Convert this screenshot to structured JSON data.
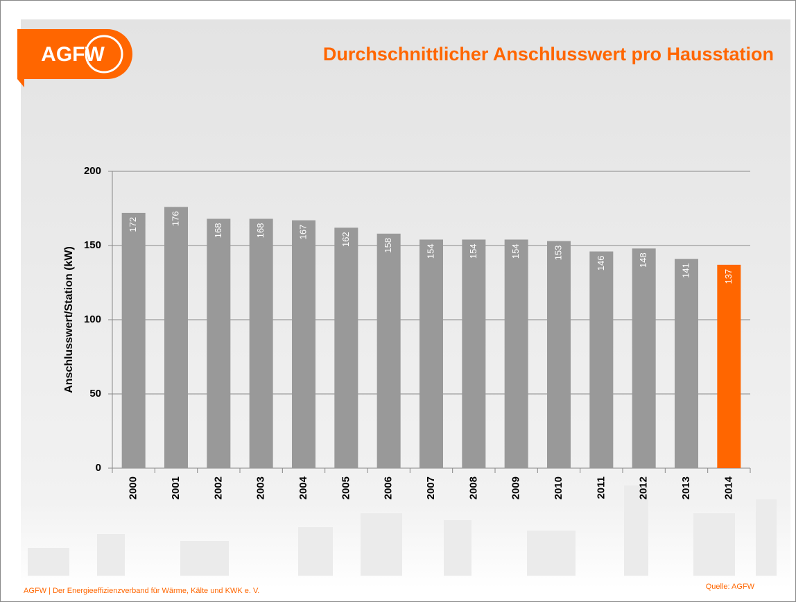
{
  "logo": "AGFW",
  "footer": "AGFW | Der Energieeffizienzverband für Wärme, Kälte und KWK e. V.",
  "source": "Quelle: AGFW",
  "chart_data": {
    "type": "bar",
    "title": "Durchschnittlicher Anschlusswert pro Hausstation",
    "y_label": "Anschlusswert/Station (kW)",
    "categories": [
      "2000",
      "2001",
      "2002",
      "2003",
      "2004",
      "2005",
      "2006",
      "2007",
      "2008",
      "2009",
      "2010",
      "2011",
      "2012",
      "2013",
      "2014"
    ],
    "values": [
      172,
      176,
      168,
      168,
      167,
      162,
      158,
      154,
      154,
      154,
      153,
      146,
      148,
      141,
      137
    ],
    "colors": [
      "#999999",
      "#999999",
      "#999999",
      "#999999",
      "#999999",
      "#999999",
      "#999999",
      "#999999",
      "#999999",
      "#999999",
      "#999999",
      "#999999",
      "#999999",
      "#999999",
      "#ff6600"
    ],
    "ylim": [
      0,
      200
    ],
    "yticks": [
      0,
      50,
      100,
      150,
      200
    ],
    "grid": true
  }
}
